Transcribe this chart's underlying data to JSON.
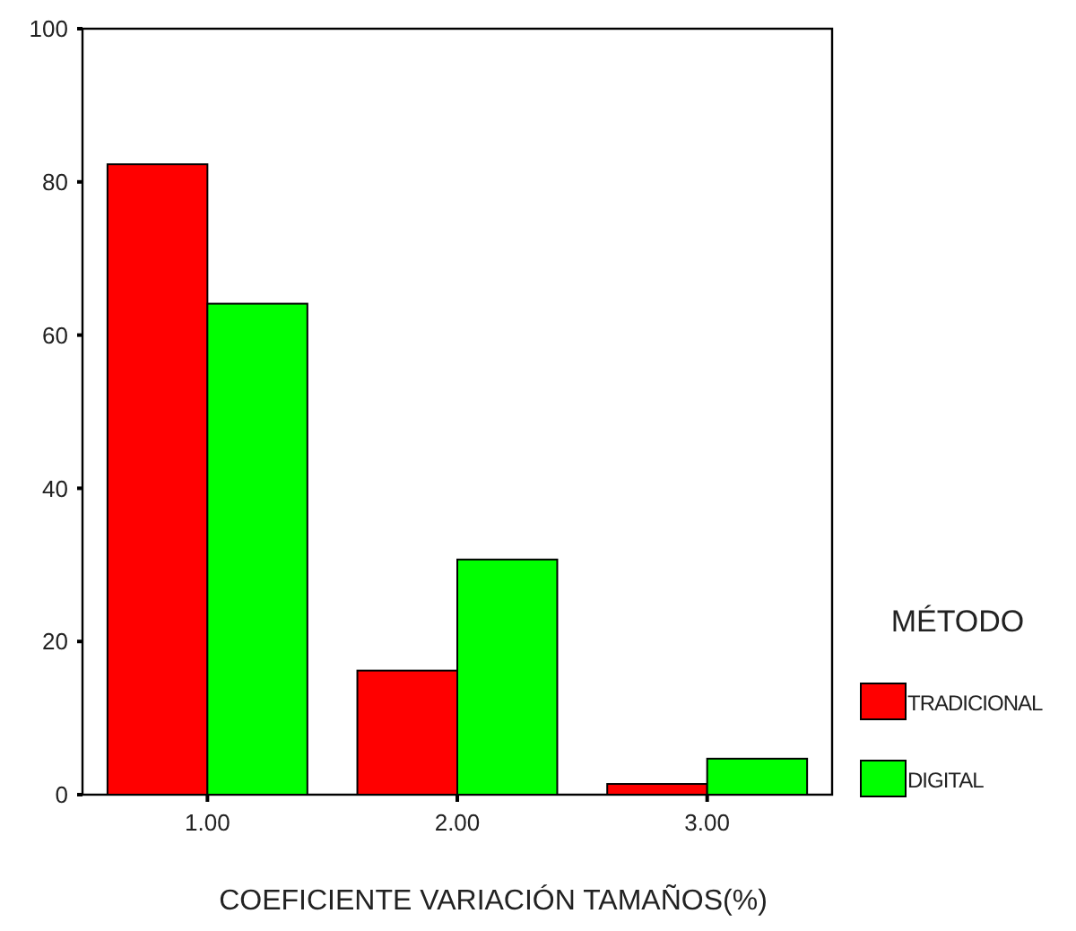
{
  "chart_data": {
    "type": "bar",
    "xlabel": "COEFICIENTE VARIACIÓN TAMAÑOS(%)",
    "legend_title": "MÉTODO",
    "legend": "right",
    "categories": [
      "1.00",
      "2.00",
      "3.00"
    ],
    "series": [
      {
        "name": "TRADICIONAL",
        "color": "#ff0000",
        "values": [
          82.3,
          16.2,
          1.4
        ]
      },
      {
        "name": "DIGITAL",
        "color": "#00ff00",
        "values": [
          64.1,
          30.7,
          4.7
        ]
      }
    ],
    "ylim": [
      0,
      100
    ],
    "yticks": [
      0,
      20,
      40,
      60,
      80,
      100
    ]
  }
}
